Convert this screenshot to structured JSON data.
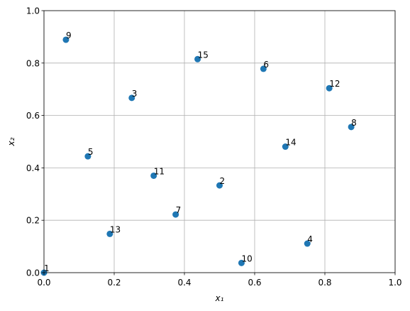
{
  "chart_data": {
    "type": "scatter",
    "x": [
      0,
      0.5,
      0.25,
      0.75,
      0.125,
      0.625,
      0.375,
      0.875,
      0.0625,
      0.5625,
      0.3125,
      0.8125,
      0.1875,
      0.6875,
      0.4375
    ],
    "values": [
      0,
      0.333,
      0.667,
      0.111,
      0.444,
      0.778,
      0.222,
      0.556,
      0.889,
      0.037,
      0.37,
      0.704,
      0.148,
      0.481,
      0.815
    ],
    "point_labels": [
      "1",
      "2",
      "3",
      "4",
      "5",
      "6",
      "7",
      "8",
      "9",
      "10",
      "11",
      "12",
      "13",
      "14",
      "15"
    ],
    "color": "#1f77b4",
    "x_label": "x₁",
    "y_label": "x₂",
    "xlim": [
      0,
      1
    ],
    "ylim": [
      0,
      1
    ],
    "xticks": [
      {
        "value": 0,
        "label": "0.0"
      },
      {
        "value": 0.2,
        "label": "0.2"
      },
      {
        "value": 0.4,
        "label": "0.4"
      },
      {
        "value": 0.6,
        "label": "0.6"
      },
      {
        "value": 0.8,
        "label": "0.8"
      },
      {
        "value": 1,
        "label": "1.0"
      }
    ],
    "yticks": [
      {
        "value": 0,
        "label": "0.0"
      },
      {
        "value": 0.2,
        "label": "0.2"
      },
      {
        "value": 0.4,
        "label": "0.4"
      },
      {
        "value": 0.6,
        "label": "0.6"
      },
      {
        "value": 0.8,
        "label": "0.8"
      },
      {
        "value": 1,
        "label": "1.0"
      }
    ],
    "grid": true
  }
}
